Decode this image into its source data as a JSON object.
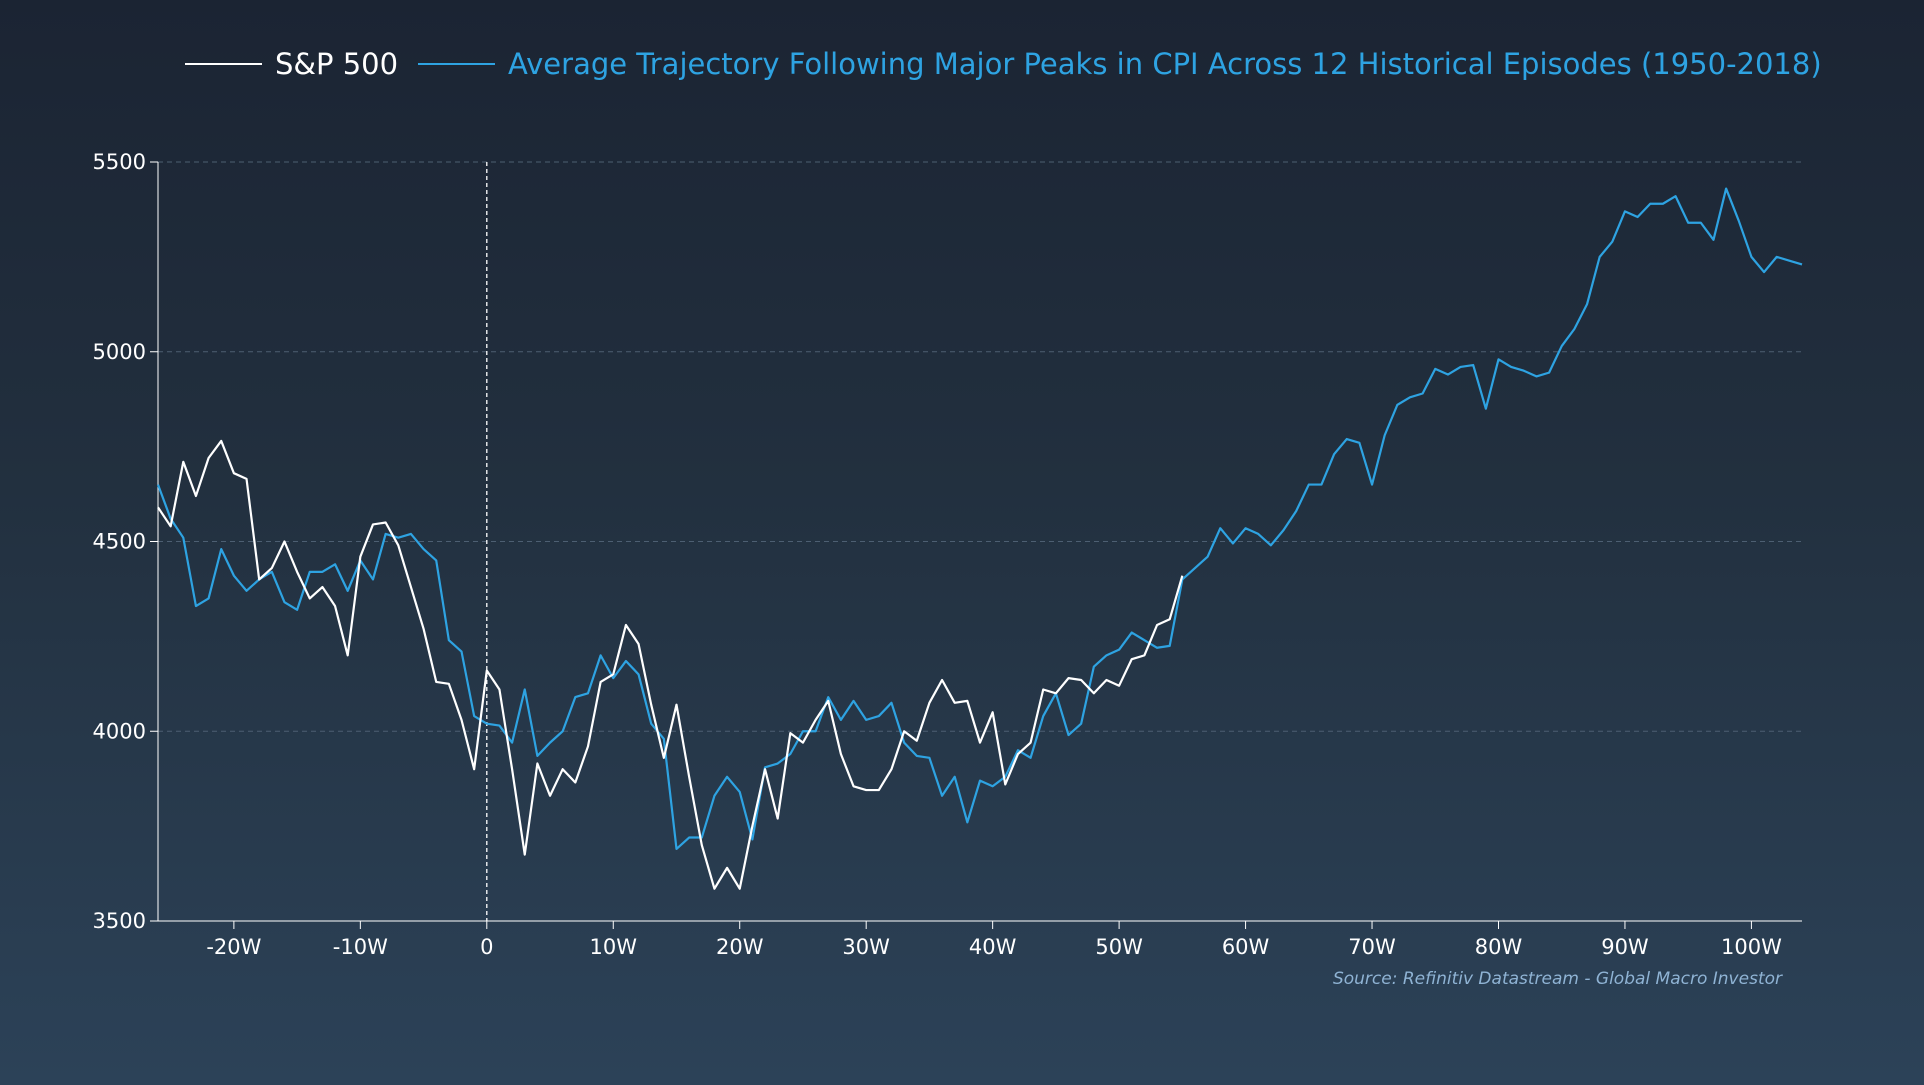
{
  "chart_data": {
    "type": "line",
    "title": "",
    "xlabel": "",
    "ylabel": "",
    "x_unit": "weeks relative to CPI peak",
    "xlim": [
      -26,
      104
    ],
    "ylim": [
      3500,
      5500
    ],
    "x_ticks": [
      -20,
      -10,
      0,
      10,
      20,
      30,
      40,
      50,
      60,
      70,
      80,
      90,
      100
    ],
    "x_tick_labels": [
      "-20W",
      "-10W",
      "0",
      "10W",
      "20W",
      "30W",
      "40W",
      "50W",
      "60W",
      "70W",
      "80W",
      "90W",
      "100W"
    ],
    "y_ticks": [
      3500,
      4000,
      4500,
      5000,
      5500
    ],
    "y_tick_labels": [
      "3500",
      "4000",
      "4500",
      "5000",
      "5500"
    ],
    "grid": "horizontal dashed",
    "legend_position": "top",
    "vertical_marker_x": 0,
    "source": "Source: Refinitiv Datastream - Global Macro Investor",
    "colors": {
      "sp500": "#ffffff",
      "average": "#2ea3e2",
      "source": "#8fb3d4"
    },
    "series": [
      {
        "name": "S&P 500",
        "color": "#ffffff",
        "x": [
          -26,
          -25,
          -24,
          -23,
          -22,
          -21,
          -20,
          -19,
          -18,
          -17,
          -16,
          -15,
          -14,
          -13,
          -12,
          -11,
          -10,
          -9,
          -8,
          -7,
          -6,
          -5,
          -4,
          -3,
          -2,
          -1,
          0,
          1,
          2,
          3,
          4,
          5,
          6,
          7,
          8,
          9,
          10,
          11,
          12,
          13,
          14,
          15,
          16,
          17,
          18,
          19,
          20,
          21,
          22,
          23,
          24,
          25,
          26,
          27,
          28,
          29,
          30,
          31,
          32,
          33,
          34,
          35,
          36,
          37,
          38,
          39,
          40,
          41,
          42,
          43,
          44,
          45,
          46,
          47,
          48,
          49,
          50,
          51,
          52,
          53,
          54,
          55
        ],
        "values": [
          4590,
          4540,
          4710,
          4620,
          4720,
          4765,
          4680,
          4665,
          4400,
          4430,
          4500,
          4420,
          4350,
          4380,
          4330,
          4200,
          4460,
          4545,
          4550,
          4490,
          4380,
          4270,
          4130,
          4125,
          4030,
          3900,
          4160,
          4110,
          3900,
          3675,
          3915,
          3830,
          3900,
          3865,
          3960,
          4130,
          4150,
          4280,
          4230,
          4070,
          3930,
          4070,
          3880,
          3700,
          3585,
          3640,
          3585,
          3750,
          3900,
          3770,
          3995,
          3970,
          4030,
          4080,
          3940,
          3855,
          3845,
          3845,
          3900,
          4000,
          3975,
          4075,
          4135,
          4075,
          4080,
          3970,
          4050,
          3860,
          3940,
          3970,
          4110,
          4100,
          4140,
          4135,
          4100,
          4135,
          4120,
          4190,
          4200,
          4280,
          4295,
          4410
        ]
      },
      {
        "name": "Average Trajectory Following Major Peaks in CPI Across 12 Historical Episodes (1950-2018)",
        "color": "#2ea3e2",
        "x": [
          -26,
          -25,
          -24,
          -23,
          -22,
          -21,
          -20,
          -19,
          -18,
          -17,
          -16,
          -15,
          -14,
          -13,
          -12,
          -11,
          -10,
          -9,
          -8,
          -7,
          -6,
          -5,
          -4,
          -3,
          -2,
          -1,
          0,
          1,
          2,
          3,
          4,
          5,
          6,
          7,
          8,
          9,
          10,
          11,
          12,
          13,
          14,
          15,
          16,
          17,
          18,
          19,
          20,
          21,
          22,
          23,
          24,
          25,
          26,
          27,
          28,
          29,
          30,
          31,
          32,
          33,
          34,
          35,
          36,
          37,
          38,
          39,
          40,
          41,
          42,
          43,
          44,
          45,
          46,
          47,
          48,
          49,
          50,
          51,
          52,
          53,
          54,
          55,
          56,
          57,
          58,
          59,
          60,
          61,
          62,
          63,
          64,
          65,
          66,
          67,
          68,
          69,
          70,
          71,
          72,
          73,
          74,
          75,
          76,
          77,
          78,
          79,
          80,
          81,
          82,
          83,
          84,
          85,
          86,
          87,
          88,
          89,
          90,
          91,
          92,
          93,
          94,
          95,
          96,
          97,
          98,
          99,
          100,
          101,
          102,
          103,
          104
        ],
        "values": [
          4650,
          4560,
          4510,
          4330,
          4350,
          4480,
          4410,
          4370,
          4400,
          4420,
          4340,
          4320,
          4420,
          4420,
          4440,
          4370,
          4450,
          4400,
          4520,
          4510,
          4520,
          4480,
          4450,
          4240,
          4210,
          4040,
          4020,
          4015,
          3970,
          4110,
          3935,
          3970,
          4000,
          4090,
          4100,
          4200,
          4140,
          4185,
          4150,
          4020,
          3980,
          3690,
          3720,
          3720,
          3830,
          3880,
          3840,
          3715,
          3905,
          3915,
          3940,
          4000,
          4000,
          4090,
          4030,
          4080,
          4030,
          4040,
          4075,
          3970,
          3935,
          3930,
          3830,
          3880,
          3760,
          3870,
          3855,
          3880,
          3950,
          3930,
          4040,
          4100,
          3990,
          4020,
          4170,
          4200,
          4215,
          4260,
          4240,
          4220,
          4225,
          4400,
          4430,
          4460,
          4535,
          4495,
          4535,
          4520,
          4490,
          4530,
          4580,
          4650,
          4650,
          4730,
          4770,
          4760,
          4650,
          4780,
          4860,
          4880,
          4890,
          4955,
          4940,
          4960,
          4965,
          4850,
          4980,
          4960,
          4950,
          4935,
          4945,
          5015,
          5060,
          5125,
          5250,
          5290,
          5370,
          5355,
          5390,
          5390,
          5410,
          5340,
          5340,
          5295,
          5430,
          5345,
          5250,
          5210,
          5250,
          5240,
          5230
        ]
      }
    ]
  }
}
